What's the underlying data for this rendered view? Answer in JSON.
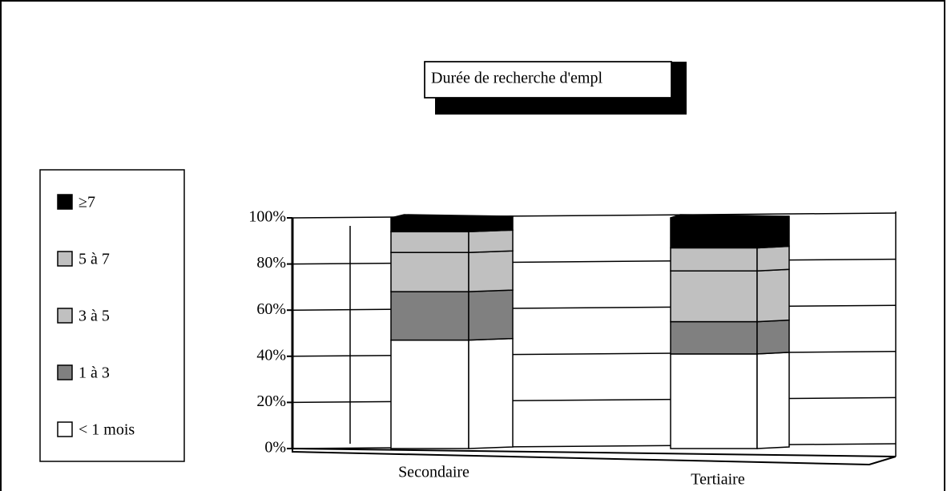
{
  "chart_data": {
    "type": "stacked_bar_3d",
    "title": "Durée de recherche d'empl",
    "categories": [
      "Secondaire",
      "Tertiaire"
    ],
    "series": [
      {
        "name": "< 1 mois",
        "color": "#ffffff",
        "values": [
          47,
          41
        ]
      },
      {
        "name": "1 à 3",
        "color": "#808080",
        "values": [
          21,
          14
        ]
      },
      {
        "name": "3 à 5",
        "color": "#c0c0c0",
        "values": [
          17,
          22
        ]
      },
      {
        "name": "5 à 7",
        "color": "#c0c0c0",
        "values": [
          9,
          10
        ]
      },
      {
        "name": "≥7",
        "color": "#000000",
        "values": [
          6,
          13
        ]
      }
    ],
    "ylim": [
      0,
      100
    ],
    "yticks": [
      {
        "value": 0,
        "label": "0%"
      },
      {
        "value": 20,
        "label": "20%"
      },
      {
        "value": 40,
        "label": "40%"
      },
      {
        "value": 60,
        "label": "60%"
      },
      {
        "value": 80,
        "label": "80%"
      },
      {
        "value": 100,
        "label": "100%"
      }
    ],
    "grid": true
  }
}
